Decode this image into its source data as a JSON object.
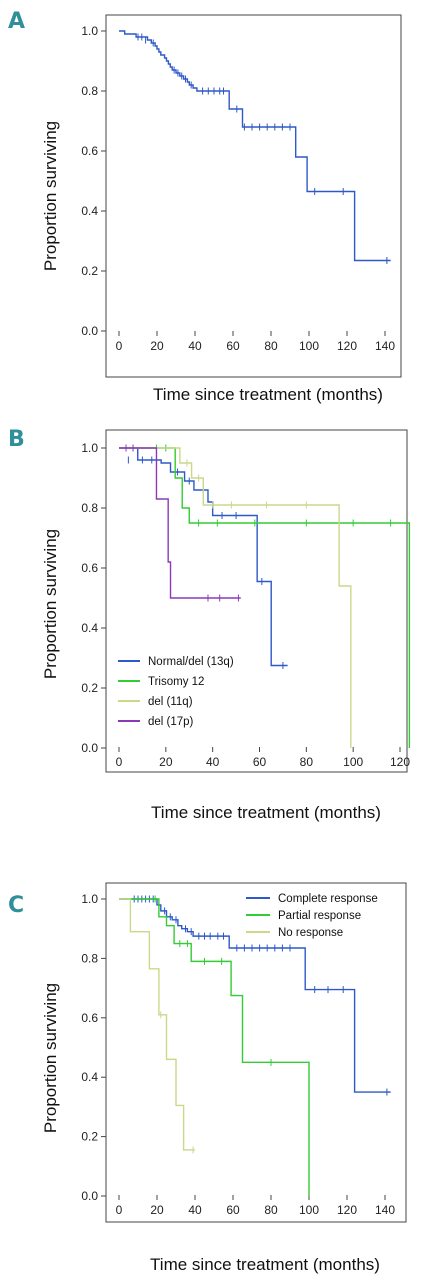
{
  "chart_data": [
    {
      "panel": "A",
      "type": "line",
      "xlabel": "Time since treatment (months)",
      "ylabel": "Proportion surviving",
      "xlim": [
        0,
        140
      ],
      "ylim": [
        0,
        1
      ],
      "xticks": [
        "0",
        "20",
        "40",
        "60",
        "80",
        "100",
        "120",
        "140"
      ],
      "yticks": [
        "0.0",
        "0.2",
        "0.4",
        "0.6",
        "0.8",
        "1.0"
      ],
      "legend_position": "none",
      "series": [
        {
          "color": "#2f58c9",
          "steps": [
            [
              0,
              1.0
            ],
            [
              3,
              0.99
            ],
            [
              9,
              0.98
            ],
            [
              15,
              0.97
            ],
            [
              17,
              0.96
            ],
            [
              19,
              0.95
            ],
            [
              20,
              0.94
            ],
            [
              21,
              0.93
            ],
            [
              22,
              0.92
            ],
            [
              24,
              0.91
            ],
            [
              25,
              0.9
            ],
            [
              26,
              0.89
            ],
            [
              27,
              0.88
            ],
            [
              28,
              0.87
            ],
            [
              30,
              0.86
            ],
            [
              32,
              0.85
            ],
            [
              34,
              0.84
            ],
            [
              36,
              0.83
            ],
            [
              37,
              0.82
            ],
            [
              39,
              0.81
            ],
            [
              41,
              0.8
            ],
            [
              58,
              0.74
            ],
            [
              65,
              0.68
            ],
            [
              93,
              0.58
            ],
            [
              99,
              0.465
            ],
            [
              124,
              0.235
            ],
            [
              143,
              0.235
            ]
          ],
          "censored": [
            [
              10,
              0.98
            ],
            [
              12,
              0.98
            ],
            [
              14,
              0.97
            ],
            [
              18,
              0.96
            ],
            [
              29,
              0.87
            ],
            [
              31,
              0.86
            ],
            [
              33,
              0.85
            ],
            [
              35,
              0.84
            ],
            [
              38,
              0.82
            ],
            [
              44,
              0.8
            ],
            [
              47,
              0.8
            ],
            [
              50,
              0.8
            ],
            [
              53,
              0.8
            ],
            [
              55,
              0.8
            ],
            [
              62,
              0.74
            ],
            [
              66,
              0.68
            ],
            [
              70,
              0.68
            ],
            [
              74,
              0.68
            ],
            [
              78,
              0.68
            ],
            [
              82,
              0.68
            ],
            [
              86,
              0.68
            ],
            [
              90,
              0.68
            ],
            [
              103,
              0.465
            ],
            [
              118,
              0.465
            ],
            [
              141,
              0.235
            ]
          ]
        }
      ]
    },
    {
      "panel": "B",
      "type": "line",
      "xlabel": "Time since treatment (months)",
      "ylabel": "Proportion surviving",
      "xlim": [
        0,
        120
      ],
      "ylim": [
        0,
        1
      ],
      "xticks": [
        "0",
        "20",
        "40",
        "60",
        "80",
        "100",
        "120"
      ],
      "yticks": [
        "0.0",
        "0.2",
        "0.4",
        "0.6",
        "0.8",
        "1.0"
      ],
      "legend_position": "bottom-left",
      "series": [
        {
          "name": "Normal/del (13q)",
          "color": "#2f58c9",
          "steps": [
            [
              0,
              1.0
            ],
            [
              8,
              0.96
            ],
            [
              18,
              0.95
            ],
            [
              22,
              0.92
            ],
            [
              28,
              0.89
            ],
            [
              32,
              0.86
            ],
            [
              38,
              0.82
            ],
            [
              40,
              0.775
            ],
            [
              59,
              0.555
            ],
            [
              65,
              0.275
            ],
            [
              72,
              0.275
            ]
          ],
          "censored": [
            [
              4,
              0.96
            ],
            [
              10,
              0.96
            ],
            [
              14,
              0.96
            ],
            [
              25,
              0.92
            ],
            [
              30,
              0.89
            ],
            [
              36,
              0.86
            ],
            [
              44,
              0.775
            ],
            [
              50,
              0.775
            ],
            [
              61,
              0.555
            ],
            [
              70,
              0.275
            ]
          ]
        },
        {
          "name": "Trisomy 12",
          "color": "#33cc33",
          "steps": [
            [
              0,
              1.0
            ],
            [
              24,
              0.9
            ],
            [
              27,
              0.8
            ],
            [
              30,
              0.75
            ],
            [
              124,
              0.0
            ]
          ],
          "censored": [
            [
              16,
              1.0
            ],
            [
              20,
              1.0
            ],
            [
              34,
              0.75
            ],
            [
              42,
              0.75
            ],
            [
              58,
              0.75
            ],
            [
              80,
              0.75
            ],
            [
              100,
              0.75
            ],
            [
              116,
              0.75
            ]
          ]
        },
        {
          "name": "del (11q)",
          "color": "#c8d98a",
          "steps": [
            [
              0,
              1.0
            ],
            [
              26,
              0.95
            ],
            [
              31,
              0.9
            ],
            [
              36,
              0.81
            ],
            [
              94,
              0.54
            ],
            [
              99,
              0.0
            ]
          ],
          "censored": [
            [
              29,
              0.95
            ],
            [
              34,
              0.9
            ],
            [
              40,
              0.81
            ],
            [
              48,
              0.81
            ],
            [
              63,
              0.81
            ],
            [
              80,
              0.81
            ]
          ]
        },
        {
          "name": "del (17p)",
          "color": "#8a3ab9",
          "steps": [
            [
              0,
              1.0
            ],
            [
              16,
              0.83
            ],
            [
              21,
              0.62
            ],
            [
              22,
              0.5
            ],
            [
              52,
              0.5
            ]
          ],
          "censored": [
            [
              3,
              1.0
            ],
            [
              6,
              1.0
            ],
            [
              38,
              0.5
            ],
            [
              43,
              0.5
            ],
            [
              51,
              0.5
            ]
          ]
        }
      ]
    },
    {
      "panel": "C",
      "type": "line",
      "xlabel": "Time since treatment (months)",
      "ylabel": "Proportion surviving",
      "xlim": [
        0,
        140
      ],
      "ylim": [
        0,
        1
      ],
      "xticks": [
        "0",
        "20",
        "40",
        "60",
        "80",
        "100",
        "120",
        "140"
      ],
      "yticks": [
        "0.0",
        "0.2",
        "0.4",
        "0.6",
        "0.8",
        "1.0"
      ],
      "legend_position": "top-right",
      "series": [
        {
          "name": "Complete response",
          "color": "#2f58c9",
          "steps": [
            [
              0,
              1.0
            ],
            [
              20,
              0.98
            ],
            [
              22,
              0.96
            ],
            [
              25,
              0.94
            ],
            [
              28,
              0.93
            ],
            [
              31,
              0.91
            ],
            [
              33,
              0.9
            ],
            [
              36,
              0.89
            ],
            [
              39,
              0.875
            ],
            [
              58,
              0.835
            ],
            [
              98,
              0.695
            ],
            [
              124,
              0.35
            ],
            [
              143,
              0.35
            ]
          ],
          "censored": [
            [
              8,
              1.0
            ],
            [
              10,
              1.0
            ],
            [
              12,
              1.0
            ],
            [
              14,
              1.0
            ],
            [
              16,
              1.0
            ],
            [
              18,
              1.0
            ],
            [
              24,
              0.96
            ],
            [
              27,
              0.94
            ],
            [
              30,
              0.93
            ],
            [
              35,
              0.9
            ],
            [
              38,
              0.89
            ],
            [
              42,
              0.875
            ],
            [
              45,
              0.875
            ],
            [
              48,
              0.875
            ],
            [
              52,
              0.875
            ],
            [
              55,
              0.875
            ],
            [
              62,
              0.835
            ],
            [
              66,
              0.835
            ],
            [
              70,
              0.835
            ],
            [
              74,
              0.835
            ],
            [
              78,
              0.835
            ],
            [
              82,
              0.835
            ],
            [
              86,
              0.835
            ],
            [
              90,
              0.835
            ],
            [
              103,
              0.695
            ],
            [
              110,
              0.695
            ],
            [
              118,
              0.695
            ],
            [
              141,
              0.35
            ]
          ]
        },
        {
          "name": "Partial response",
          "color": "#33cc33",
          "steps": [
            [
              0,
              1.0
            ],
            [
              21,
              0.94
            ],
            [
              25,
              0.91
            ],
            [
              29,
              0.85
            ],
            [
              38,
              0.79
            ],
            [
              59,
              0.675
            ],
            [
              65,
              0.45
            ],
            [
              100,
              0.0
            ]
          ],
          "censored": [
            [
              19,
              1.0
            ],
            [
              32,
              0.85
            ],
            [
              36,
              0.85
            ],
            [
              45,
              0.79
            ],
            [
              54,
              0.79
            ],
            [
              80,
              0.45
            ]
          ]
        },
        {
          "name": "No response",
          "color": "#c8d98a",
          "steps": [
            [
              0,
              1.0
            ],
            [
              6,
              0.89
            ],
            [
              16,
              0.765
            ],
            [
              21,
              0.61
            ],
            [
              25,
              0.46
            ],
            [
              30,
              0.305
            ],
            [
              34,
              0.155
            ],
            [
              40,
              0.155
            ]
          ],
          "censored": [
            [
              22,
              0.61
            ],
            [
              39,
              0.155
            ]
          ]
        }
      ]
    }
  ]
}
